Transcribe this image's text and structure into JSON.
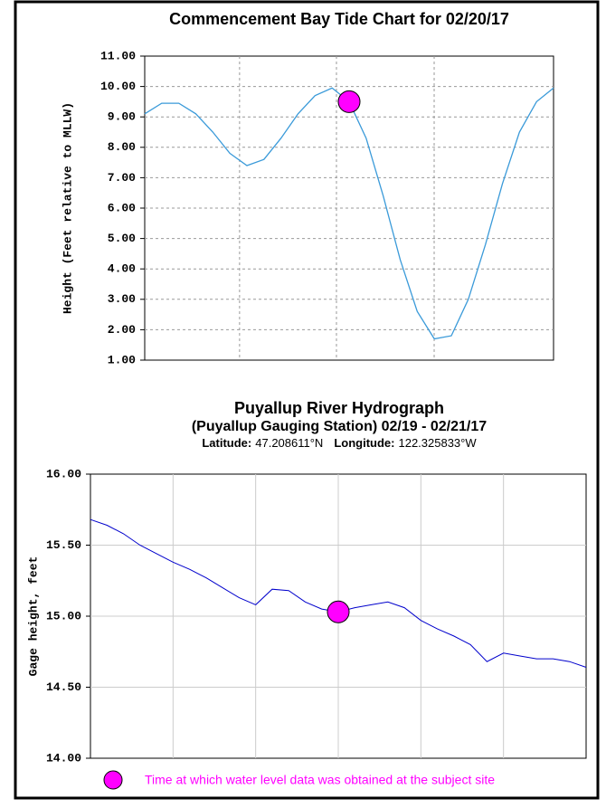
{
  "chart_data": [
    {
      "type": "line",
      "title": "Commencement Bay Tide Chart for 02/20/17",
      "ylabel": "Height (Feet relative to MLLW)",
      "ylim": [
        1,
        11
      ],
      "yticks": [
        {
          "value": 1,
          "label": "1.00"
        },
        {
          "value": 2,
          "label": "2.00"
        },
        {
          "value": 3,
          "label": "3.00"
        },
        {
          "value": 4,
          "label": "4.00"
        },
        {
          "value": 5,
          "label": "5.00"
        },
        {
          "value": 6,
          "label": "6.00"
        },
        {
          "value": 7,
          "label": "7.00"
        },
        {
          "value": 8,
          "label": "8.00"
        },
        {
          "value": 9,
          "label": "9.00"
        },
        {
          "value": 10,
          "label": "10.00"
        },
        {
          "value": 11,
          "label": "11.00"
        }
      ],
      "grid": "dashed",
      "series": [
        {
          "color": "#3a9ad9",
          "values": [
            9.1,
            9.45,
            9.45,
            9.1,
            8.5,
            7.8,
            7.4,
            7.6,
            8.3,
            9.1,
            9.7,
            9.95,
            9.5,
            8.3,
            6.4,
            4.3,
            2.6,
            1.7,
            1.8,
            3.0,
            4.8,
            6.8,
            8.5,
            9.5,
            9.95
          ]
        }
      ],
      "highlight_index": 12,
      "highlight_color": "#ff00ff"
    },
    {
      "type": "line",
      "title": "Puyallup River Hydrograph",
      "subtitle": "(Puyallup Gauging Station) 02/19 - 02/21/17",
      "location": [
        {
          "label": "Latitude:",
          "value": "47.208611°N"
        },
        {
          "label": "Longitude:",
          "value": "122.325833°W"
        }
      ],
      "ylabel": "Gage height, feet",
      "ylim": [
        14,
        16
      ],
      "yticks": [
        {
          "value": 14,
          "label": "14.00"
        },
        {
          "value": 14.5,
          "label": "14.50"
        },
        {
          "value": 15,
          "label": "15.00"
        },
        {
          "value": 15.5,
          "label": "15.50"
        },
        {
          "value": 16,
          "label": "16.00"
        }
      ],
      "grid": "solid",
      "series": [
        {
          "color": "#0000cc",
          "values": [
            15.68,
            15.64,
            15.58,
            15.5,
            15.44,
            15.38,
            15.33,
            15.27,
            15.2,
            15.13,
            15.08,
            15.19,
            15.18,
            15.1,
            15.05,
            15.03,
            15.06,
            15.08,
            15.1,
            15.06,
            14.97,
            14.91,
            14.86,
            14.8,
            14.68,
            14.74,
            14.72,
            14.7,
            14.7,
            14.68,
            14.64
          ]
        }
      ],
      "highlight_index": 15,
      "highlight_color": "#ff00ff",
      "highlight_note": "Time at which water level data was obtained at the subject site"
    }
  ]
}
